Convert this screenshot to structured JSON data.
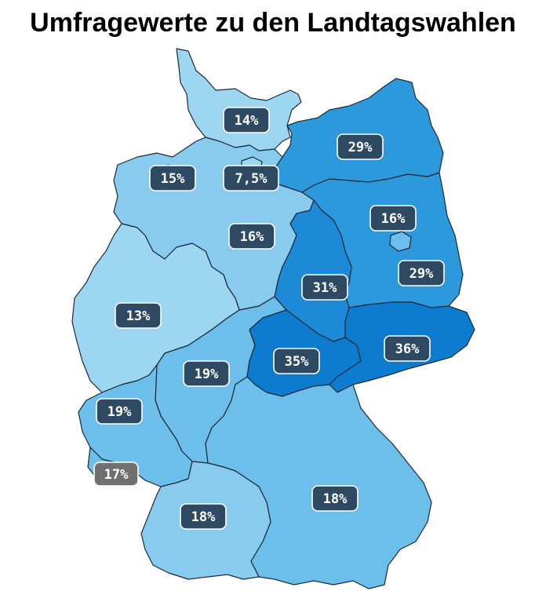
{
  "title": "Umfragewerte zu den Landtagswahlen",
  "colors": {
    "lightest": "#9dd6f1",
    "light": "#88cbee",
    "medium_light": "#6cbfea",
    "medium": "#42a9e3",
    "strong": "#2b99dc",
    "stronger": "#1c8ad6",
    "strongest": "#0d7ccf",
    "label_dark": "#2d4a62",
    "label_gray": "#707070"
  },
  "regions": [
    {
      "id": "schleswig-holstein",
      "label": "14%",
      "value": 14
    },
    {
      "id": "mecklenburg-vorpommern",
      "label": "29%",
      "value": 29
    },
    {
      "id": "bremen",
      "label": "15%",
      "value": 15
    },
    {
      "id": "hamburg",
      "label": "7,5%",
      "value": 7.5
    },
    {
      "id": "brandenburg",
      "label": "16%",
      "value": 16
    },
    {
      "id": "niedersachsen",
      "label": "16%",
      "value": 16
    },
    {
      "id": "berlin",
      "label": "29%",
      "value": 29
    },
    {
      "id": "sachsen-anhalt",
      "label": "31%",
      "value": 31
    },
    {
      "id": "nordrhein-westfalen",
      "label": "13%",
      "value": 13
    },
    {
      "id": "thueringen",
      "label": "35%",
      "value": 35
    },
    {
      "id": "sachsen",
      "label": "36%",
      "value": 36
    },
    {
      "id": "hessen",
      "label": "19%",
      "value": 19
    },
    {
      "id": "rheinland-pfalz",
      "label": "19%",
      "value": 19
    },
    {
      "id": "saarland",
      "label": "17%",
      "value": 17
    },
    {
      "id": "bayern",
      "label": "18%",
      "value": 18
    },
    {
      "id": "baden-wuerttemberg",
      "label": "18%",
      "value": 18
    }
  ]
}
